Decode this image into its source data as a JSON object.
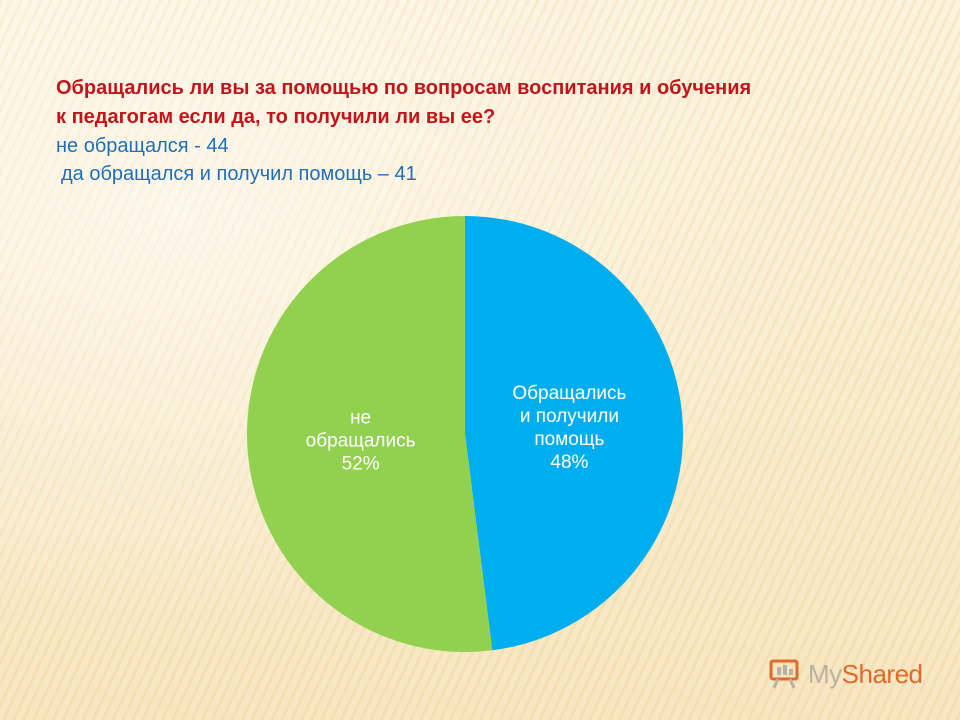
{
  "slide": {
    "title_line1": "Обращались ли вы за помощью по вопросам воспитания и обучения",
    "title_line2": "к педагогам если да, то получили ли вы ее?",
    "info_line1": "не обращался - 44",
    "info_line2": "да обращался и получил помощь – 41"
  },
  "chart_data": {
    "type": "pie",
    "title": "",
    "slices": [
      {
        "label_lines": [
          "Обращались",
          "и получили",
          "помощь"
        ],
        "percent_label": "48%",
        "value": 48,
        "color": "#00aeef"
      },
      {
        "label_lines": [
          "не",
          "обращались"
        ],
        "percent_label": "52%",
        "value": 52,
        "color": "#92d050"
      }
    ],
    "start_angle_deg": 0,
    "direction": "clockwise",
    "label_color": "#ffffff"
  },
  "watermark": {
    "part1": "My",
    "part2": "Shared",
    "icon": "presentation-board-icon"
  }
}
